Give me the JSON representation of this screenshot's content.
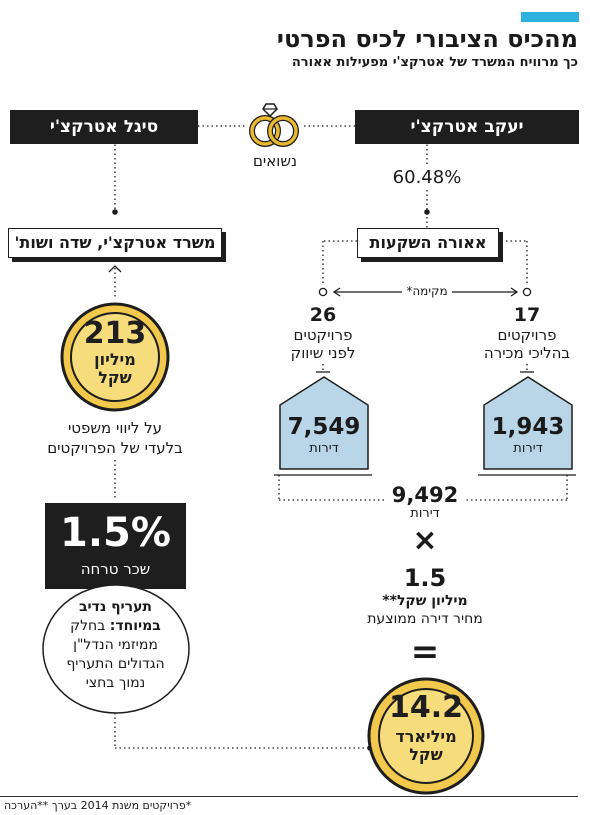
{
  "header": {
    "title": "מהכיס הציבורי לכיס הפרטי",
    "subtitle": "כך מרוויח המשרד של אטרקצ'י מפעילות אאורה"
  },
  "left": {
    "person": "סיגל אטרקצ'י",
    "firm": "משרד אטרקצ'י, שדה ושות'",
    "coin_value": "213",
    "coin_unit_line1": "מיליון",
    "coin_unit_line2": "שקל",
    "legal_line1": "על ליווי משפטי",
    "legal_line2": "בלעדי של הפרויקטים",
    "fee_value": "1.5%",
    "fee_label": "שכר טרחה",
    "note_bold1": "תעריף נדיב",
    "note_bold2": "במיוחד:",
    "note_rest1": "בחלק",
    "note_rest2": "ממיזמי הנדל\"ן",
    "note_rest3": "הגדולים התעריף",
    "note_rest4": "נמוך בחצי"
  },
  "center": {
    "married": "נשואים",
    "ownership": "60.48%",
    "founded_label": "מקימה*"
  },
  "right": {
    "person": "יעקב אטרקצ'י",
    "company": "אאורה השקעות",
    "pre_market_count": "26",
    "pre_market_line1": "פרויקטים",
    "pre_market_line2": "לפני שיווק",
    "selling_count": "17",
    "selling_line1": "פרויקטים",
    "selling_line2": "בהליכי מכירה",
    "house_left_value": "7,549",
    "house_left_unit": "דירות",
    "house_right_value": "1,943",
    "house_right_unit": "דירות",
    "total_value": "9,492",
    "total_unit": "דירות",
    "times_symbol": "×",
    "price_value": "1.5",
    "price_unit": "מיליון שקל**",
    "price_label": "מחיר דירה ממוצעת",
    "equals_symbol": "=",
    "result_value": "14.2",
    "result_unit_line1": "מיליארד",
    "result_unit_line2": "שקל"
  },
  "footer": {
    "note": "*פרויקטים משנת 2014 בערך **הערכה"
  },
  "colors": {
    "accent": "#2fb1e0",
    "dark": "#1e1e1e",
    "coin_gold": "#f2c94c",
    "coin_inner": "#f7dc7b",
    "house_fill": "#b8d6e8"
  },
  "icons": {
    "rings": "wedding-rings-icon"
  }
}
